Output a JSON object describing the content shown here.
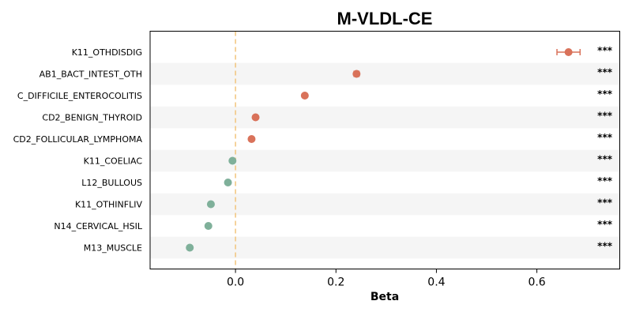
{
  "chart_data": {
    "type": "scatter",
    "title": "M-VLDL-CE",
    "xlabel": "Beta",
    "ylabel": "",
    "xlim": [
      -0.17,
      0.765
    ],
    "xticks": [
      {
        "value": 0.0,
        "label": "0.0"
      },
      {
        "value": 0.2,
        "label": "0.2"
      },
      {
        "value": 0.4,
        "label": "0.4"
      },
      {
        "value": 0.6,
        "label": "0.6"
      }
    ],
    "reference_line": {
      "x": 0,
      "style": "dashed",
      "color": "#f2c57c"
    },
    "stripe_color": "#f5f5f5",
    "positive_color": "#d9725a",
    "negative_color": "#7fb09a",
    "points": [
      {
        "label": "K11_OTHDISDIG",
        "beta": 0.663,
        "ci_low": 0.64,
        "ci_high": 0.686,
        "significance": "***"
      },
      {
        "label": "AB1_BACT_INTEST_OTH",
        "beta": 0.241,
        "ci_low": 0.236,
        "ci_high": 0.246,
        "significance": "***"
      },
      {
        "label": "C_DIFFICILE_ENTEROCOLITIS",
        "beta": 0.138,
        "ci_low": 0.135,
        "ci_high": 0.141,
        "significance": "***"
      },
      {
        "label": "CD2_BENIGN_THYROID",
        "beta": 0.04,
        "ci_low": 0.037,
        "ci_high": 0.043,
        "significance": "***"
      },
      {
        "label": "CD2_FOLLICULAR_LYMPHOMA",
        "beta": 0.032,
        "ci_low": 0.029,
        "ci_high": 0.035,
        "significance": "***"
      },
      {
        "label": "K11_COELIAC",
        "beta": -0.006,
        "ci_low": -0.009,
        "ci_high": -0.003,
        "significance": "***"
      },
      {
        "label": "L12_BULLOUS",
        "beta": -0.015,
        "ci_low": -0.018,
        "ci_high": -0.012,
        "significance": "***"
      },
      {
        "label": "K11_OTHINFLIV",
        "beta": -0.049,
        "ci_low": -0.052,
        "ci_high": -0.046,
        "significance": "***"
      },
      {
        "label": "N14_CERVICAL_HSIL",
        "beta": -0.054,
        "ci_low": -0.057,
        "ci_high": -0.051,
        "significance": "***"
      },
      {
        "label": "M13_MUSCLE",
        "beta": -0.091,
        "ci_low": -0.094,
        "ci_high": -0.088,
        "significance": "***"
      }
    ]
  }
}
